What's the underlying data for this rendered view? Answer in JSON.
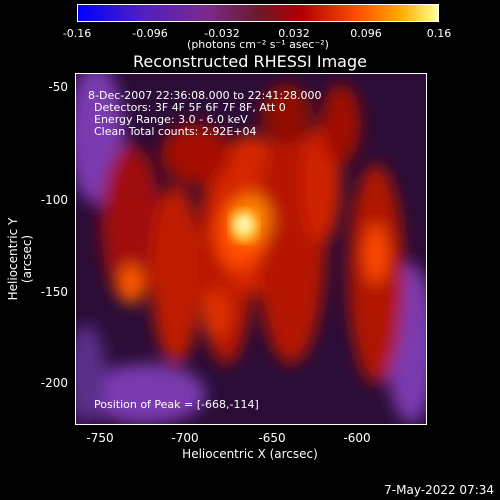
{
  "colorbar": {
    "ticks": [
      "-0.16",
      "-0.096",
      "-0.032",
      "0.032",
      "0.096",
      "0.16"
    ],
    "units": "(photons cm⁻² s⁻¹ asec⁻²)"
  },
  "chart_data": {
    "type": "heatmap",
    "title": "Reconstructed RHESSI Image",
    "xlabel": "Heliocentric X (arcsec)",
    "ylabel": "Heliocentric Y (arcsec)",
    "xlim": [
      -763,
      -626
    ],
    "ylim": [
      -223,
      -31
    ],
    "x_ticks": [
      "-750",
      "-700",
      "-650",
      "-600"
    ],
    "y_ticks": [
      "-50",
      "-100",
      "-150",
      "-200"
    ],
    "color_range": [
      -0.16,
      0.16
    ],
    "peak": [
      -668,
      -114
    ],
    "annotations": {
      "line1": "8-Dec-2007 22:36:08.000 to 22:41:28.000",
      "line2": "Detectors: 3F 4F 5F 6F 7F 8F, Att 0",
      "line3": "Energy Range: 3.0 - 6.0 keV",
      "line4": "Clean    Total counts: 2.92E+04",
      "peak_label": "Position of Peak = [-668,-114]"
    }
  },
  "footer": "7-May-2022 07:34"
}
